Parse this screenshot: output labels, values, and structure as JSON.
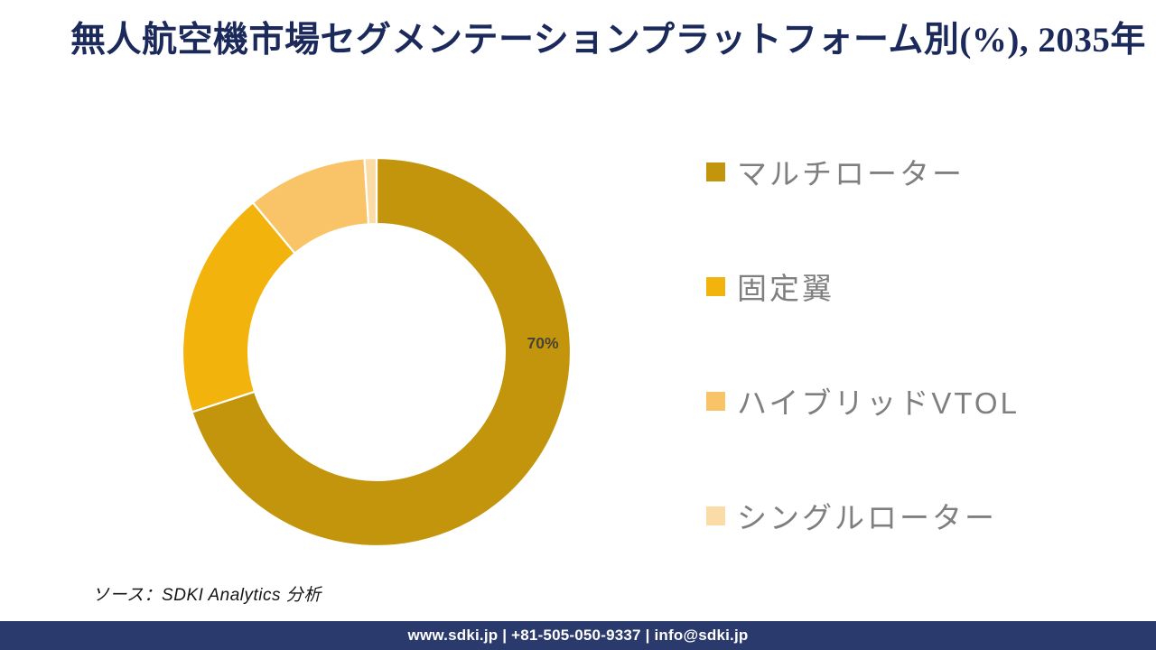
{
  "title": "無人航空機市場セグメンテーションプラットフォーム別(%), 2035年",
  "chart_data": {
    "type": "pie",
    "subtype": "donut",
    "title": "無人航空機市場セグメンテーションプラットフォーム別(%), 2035年",
    "categories": [
      "マルチローター",
      "固定翼",
      "ハイブリッドVTOL",
      "シングルローター"
    ],
    "values": [
      70,
      19,
      10,
      1
    ],
    "unit": "%",
    "colors": [
      "#C3950C",
      "#F2B30D",
      "#F9C467",
      "#FBDCA6"
    ],
    "start_angle_deg": 0,
    "direction": "clockwise",
    "hole_ratio": 0.66,
    "separator_color": "#FFFFFF",
    "legend_position": "right",
    "data_label": {
      "text": "70%",
      "segment": "マルチローター",
      "color": "#494433"
    }
  },
  "source": {
    "text": "ソース：SDKI Analytics  分析"
  },
  "footer": {
    "text": "www.sdki.jp | +81-505-050-9337 | info@sdki.jp"
  },
  "theme": {
    "title_color": "#1B2A5B",
    "footer_bg": "#2B3A6D",
    "legend_text_color": "#7F7F7F"
  }
}
